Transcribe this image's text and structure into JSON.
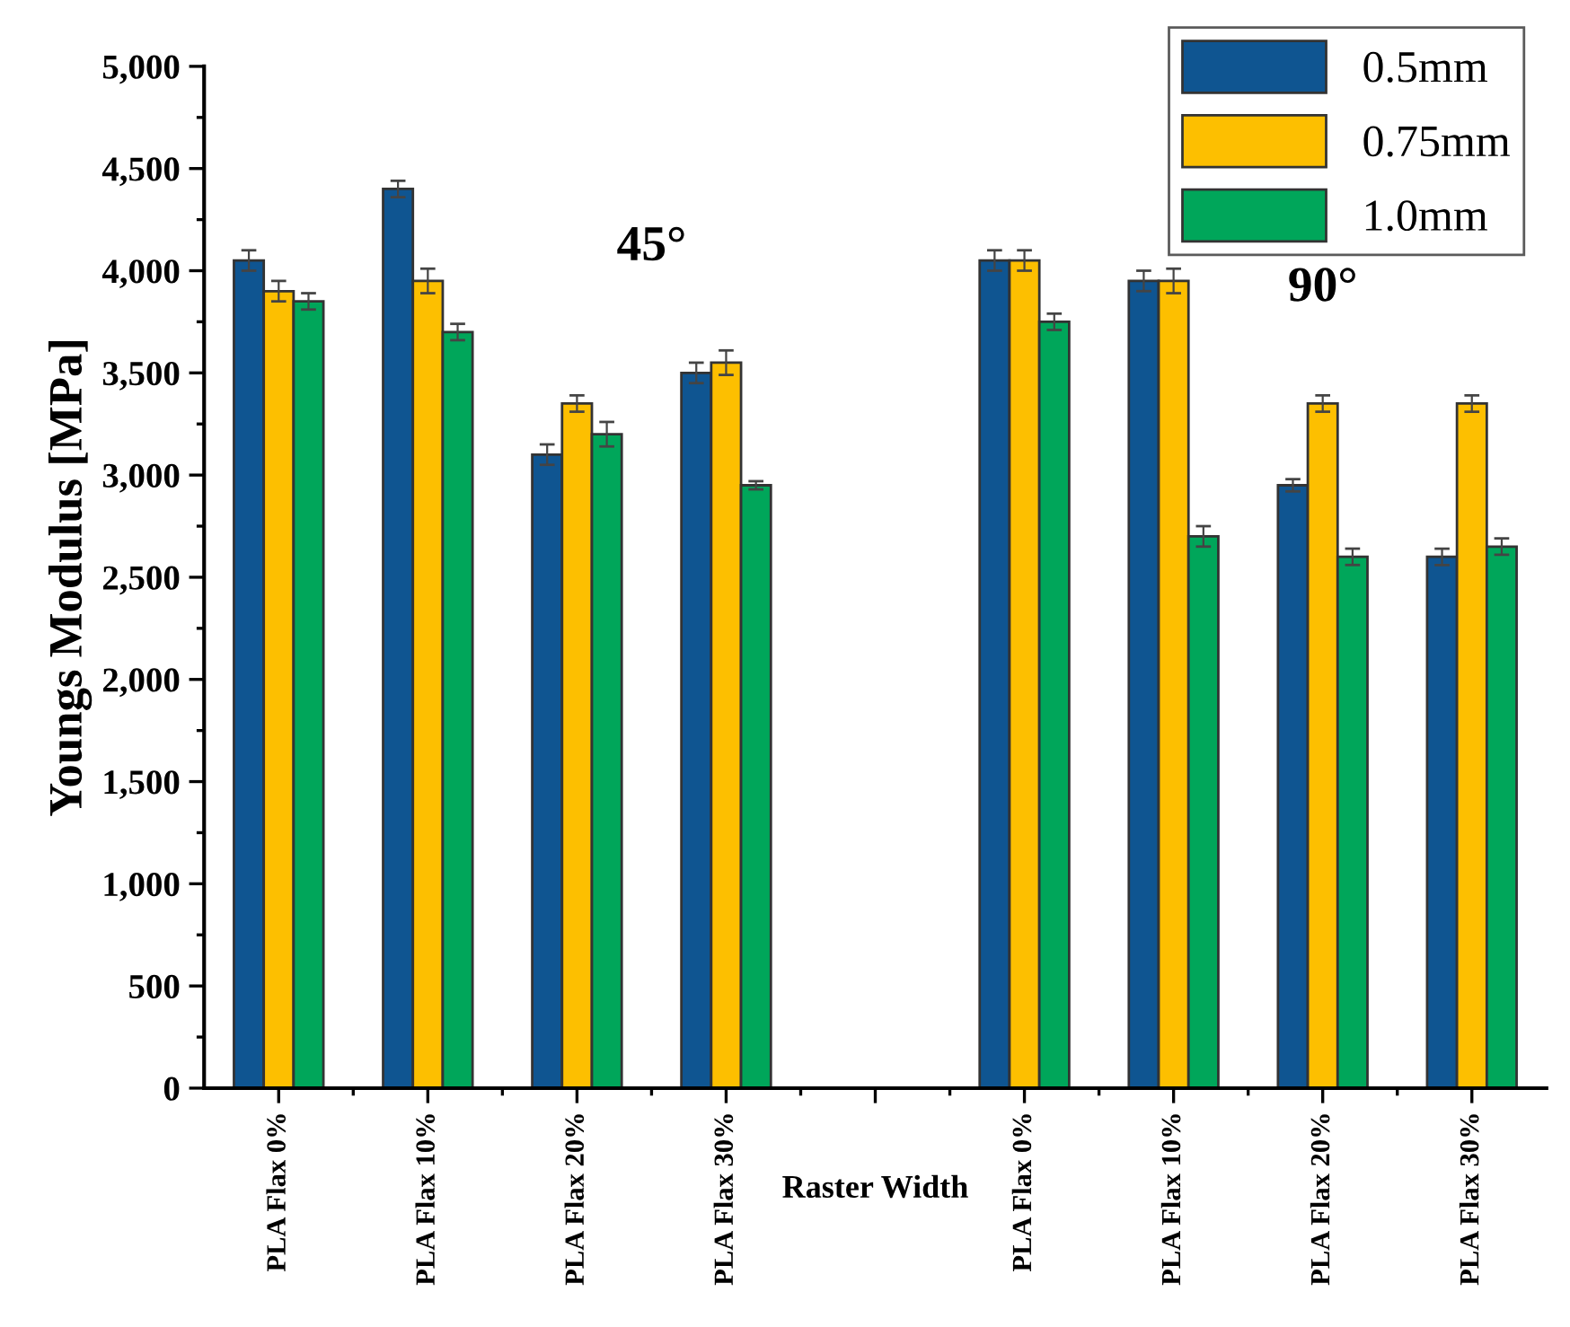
{
  "chart_data": {
    "type": "bar",
    "ylabel": "Youngs Modulus [MPa]",
    "xlabel": "Raster Width",
    "categories": [
      "PLA Flax 0%",
      "PLA Flax 10%",
      "PLA Flax 20%",
      "PLA Flax 30%",
      null,
      "PLA Flax 0%",
      "PLA Flax 10%",
      "PLA Flax 20%",
      "PLA Flax 30%"
    ],
    "series": [
      {
        "name": "0.5mm",
        "color": "#0f5591",
        "values": [
          4050,
          4400,
          3100,
          3500,
          null,
          4050,
          3950,
          2950,
          2600
        ],
        "errors": [
          50,
          40,
          50,
          50,
          null,
          50,
          50,
          30,
          40
        ]
      },
      {
        "name": "0.75mm",
        "color": "#fdbf00",
        "values": [
          3900,
          3950,
          3350,
          3550,
          null,
          4050,
          3950,
          3350,
          3350
        ],
        "errors": [
          50,
          60,
          40,
          60,
          null,
          50,
          60,
          40,
          40
        ]
      },
      {
        "name": "1.0mm",
        "color": "#00a65a",
        "values": [
          3850,
          3700,
          3200,
          2950,
          null,
          3750,
          2700,
          2600,
          2650
        ],
        "errors": [
          40,
          40,
          60,
          20,
          null,
          40,
          50,
          40,
          40
        ]
      }
    ],
    "annotations": [
      "45°",
      "90°"
    ],
    "ylim": [
      0,
      5000
    ],
    "yticks": [
      0,
      500,
      {
        "value": 1000,
        "label": "1,000"
      },
      {
        "value": 1500,
        "label": "1,500"
      },
      {
        "value": 2000,
        "label": "2,000"
      },
      {
        "value": 2500,
        "label": "2,500"
      },
      {
        "value": 3000,
        "label": "3,000"
      },
      {
        "value": 3500,
        "label": "3,500"
      },
      {
        "value": 4000,
        "label": "4,000"
      },
      {
        "value": 4500,
        "label": "4,500"
      },
      {
        "value": 5000,
        "label": "5,000"
      }
    ],
    "legend": "top right",
    "grid": false
  }
}
